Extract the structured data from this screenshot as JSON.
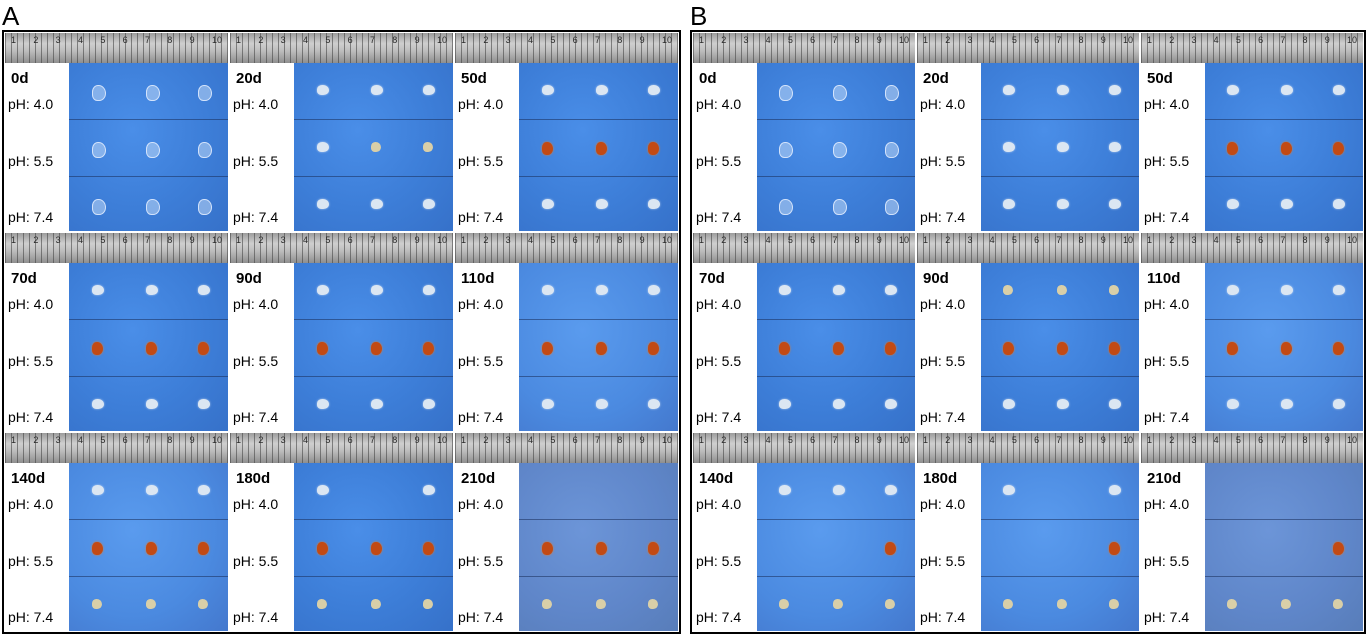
{
  "figure": {
    "panels": [
      {
        "label": "A",
        "cells": [
          {
            "day": "0d",
            "ph": [
              "pH: 4.0",
              "pH: 5.5",
              "pH: 7.4"
            ],
            "tone": "normal",
            "samples": [
              [
                "c",
                "c",
                "c"
              ],
              [
                "c",
                "c",
                "c"
              ],
              [
                "c",
                "c",
                "c"
              ]
            ]
          },
          {
            "day": "20d",
            "ph": [
              "pH: 4.0",
              "pH: 5.5",
              "pH: 7.4"
            ],
            "tone": "normal",
            "samples": [
              [
                "w",
                "w",
                "w"
              ],
              [
                "w",
                "y",
                "y"
              ],
              [
                "w",
                "w",
                "w"
              ]
            ]
          },
          {
            "day": "50d",
            "ph": [
              "pH: 4.0",
              "pH: 5.5",
              "pH: 7.4"
            ],
            "tone": "normal",
            "samples": [
              [
                "w",
                "w",
                "w"
              ],
              [
                "o",
                "o",
                "o"
              ],
              [
                "w",
                "w",
                "w"
              ]
            ]
          },
          {
            "day": "70d",
            "ph": [
              "pH: 4.0",
              "pH: 5.5",
              "pH: 7.4"
            ],
            "tone": "normal",
            "samples": [
              [
                "w",
                "w",
                "w"
              ],
              [
                "o",
                "o",
                "o"
              ],
              [
                "w",
                "w",
                "w"
              ]
            ]
          },
          {
            "day": "90d",
            "ph": [
              "pH: 4.0",
              "pH: 5.5",
              "pH: 7.4"
            ],
            "tone": "normal",
            "samples": [
              [
                "w",
                "w",
                "w"
              ],
              [
                "o",
                "o",
                "o"
              ],
              [
                "w",
                "w",
                "w"
              ]
            ]
          },
          {
            "day": "110d",
            "ph": [
              "pH: 4.0",
              "pH: 5.5",
              "pH: 7.4"
            ],
            "tone": "light",
            "samples": [
              [
                "w",
                "w",
                "w"
              ],
              [
                "o",
                "o",
                "o"
              ],
              [
                "w",
                "w",
                "w"
              ]
            ]
          },
          {
            "day": "140d",
            "ph": [
              "pH: 4.0",
              "pH: 5.5",
              "pH: 7.4"
            ],
            "tone": "light",
            "samples": [
              [
                "w",
                "w",
                "w"
              ],
              [
                "o",
                "o",
                "o"
              ],
              [
                "y",
                "y",
                "y"
              ]
            ]
          },
          {
            "day": "180d",
            "ph": [
              "pH: 4.0",
              "pH: 5.5",
              "pH: 7.4"
            ],
            "tone": "normal",
            "samples": [
              [
                "w",
                "",
                "w"
              ],
              [
                "o",
                "o",
                "o"
              ],
              [
                "y",
                "y",
                "y"
              ]
            ]
          },
          {
            "day": "210d",
            "ph": [
              "pH: 4.0",
              "pH: 5.5",
              "pH: 7.4"
            ],
            "tone": "dusky",
            "samples": [
              [
                "",
                "",
                ""
              ],
              [
                "o",
                "o",
                "o"
              ],
              [
                "y",
                "y",
                "y"
              ]
            ]
          }
        ]
      },
      {
        "label": "B",
        "cells": [
          {
            "day": "0d",
            "ph": [
              "pH: 4.0",
              "pH: 5.5",
              "pH: 7.4"
            ],
            "tone": "normal",
            "samples": [
              [
                "c",
                "c",
                "c"
              ],
              [
                "c",
                "c",
                "c"
              ],
              [
                "c",
                "c",
                "c"
              ]
            ]
          },
          {
            "day": "20d",
            "ph": [
              "pH: 4.0",
              "pH: 5.5",
              "pH: 7.4"
            ],
            "tone": "normal",
            "samples": [
              [
                "w",
                "w",
                "w"
              ],
              [
                "w",
                "w",
                "w"
              ],
              [
                "w",
                "w",
                "w"
              ]
            ]
          },
          {
            "day": "50d",
            "ph": [
              "pH: 4.0",
              "pH: 5.5",
              "pH: 7.4"
            ],
            "tone": "normal",
            "samples": [
              [
                "w",
                "w",
                "w"
              ],
              [
                "o",
                "o",
                "o"
              ],
              [
                "w",
                "w",
                "w"
              ]
            ]
          },
          {
            "day": "70d",
            "ph": [
              "pH: 4.0",
              "pH: 5.5",
              "pH: 7.4"
            ],
            "tone": "normal",
            "samples": [
              [
                "w",
                "w",
                "w"
              ],
              [
                "o",
                "o",
                "o"
              ],
              [
                "w",
                "w",
                "w"
              ]
            ]
          },
          {
            "day": "90d",
            "ph": [
              "pH: 4.0",
              "pH: 5.5",
              "pH: 7.4"
            ],
            "tone": "normal",
            "samples": [
              [
                "y",
                "y",
                "y"
              ],
              [
                "o",
                "o",
                "o"
              ],
              [
                "w",
                "w",
                "w"
              ]
            ]
          },
          {
            "day": "110d",
            "ph": [
              "pH: 4.0",
              "pH: 5.5",
              "pH: 7.4"
            ],
            "tone": "light",
            "samples": [
              [
                "w",
                "w",
                "w"
              ],
              [
                "o",
                "o",
                "o"
              ],
              [
                "w",
                "w",
                "w"
              ]
            ]
          },
          {
            "day": "140d",
            "ph": [
              "pH: 4.0",
              "pH: 5.5",
              "pH: 7.4"
            ],
            "tone": "light",
            "samples": [
              [
                "w",
                "w",
                "w"
              ],
              [
                "",
                "",
                "o"
              ],
              [
                "y",
                "y",
                "y"
              ]
            ]
          },
          {
            "day": "180d",
            "ph": [
              "pH: 4.0",
              "pH: 5.5",
              "pH: 7.4"
            ],
            "tone": "light",
            "samples": [
              [
                "w",
                "",
                "w"
              ],
              [
                "",
                "",
                "o"
              ],
              [
                "y",
                "y",
                "y"
              ]
            ]
          },
          {
            "day": "210d",
            "ph": [
              "pH: 4.0",
              "pH: 5.5",
              "pH: 7.4"
            ],
            "tone": "dusky",
            "samples": [
              [
                "",
                "",
                ""
              ],
              [
                "",
                "",
                "o"
              ],
              [
                "y",
                "y",
                "y"
              ]
            ]
          }
        ]
      }
    ],
    "ruler_ticks": [
      "1",
      "2",
      "3",
      "4",
      "5",
      "6",
      "7",
      "8",
      "9",
      "10"
    ],
    "colors": {
      "blue_background": "#3d7ed8",
      "degraded_orange": "#c24a14",
      "white_sample": "#dbe6f2"
    }
  }
}
